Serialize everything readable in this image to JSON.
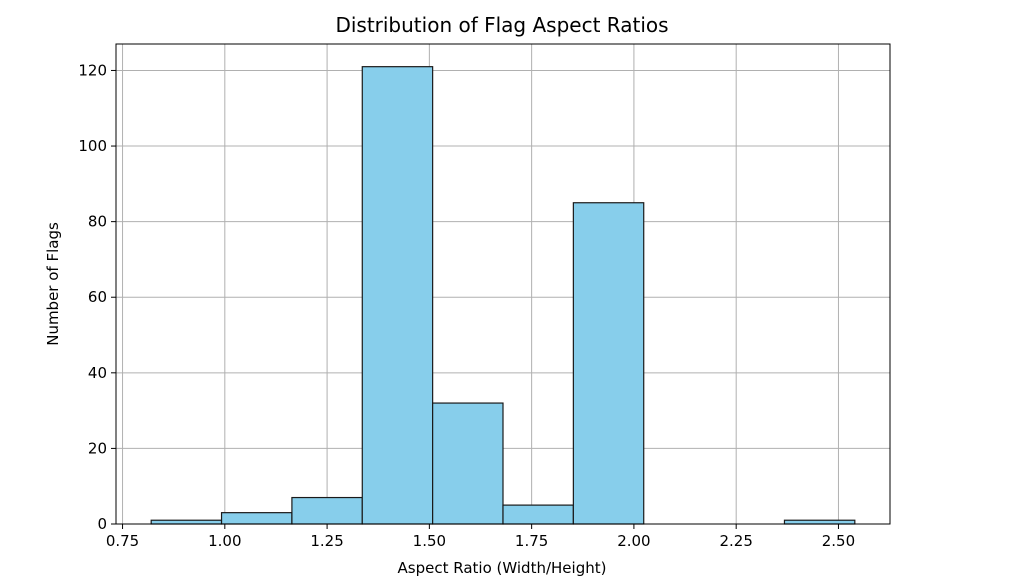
{
  "chart_data": {
    "type": "bar",
    "title": "Distribution of Flag Aspect Ratios",
    "xlabel": "Aspect Ratio (Width/Height)",
    "ylabel": "Number of Flags",
    "bins": [
      {
        "start": 0.82,
        "end": 0.992,
        "count": 1
      },
      {
        "start": 0.992,
        "end": 1.164,
        "count": 3
      },
      {
        "start": 1.164,
        "end": 1.336,
        "count": 7
      },
      {
        "start": 1.336,
        "end": 1.508,
        "count": 121
      },
      {
        "start": 1.508,
        "end": 1.68,
        "count": 32
      },
      {
        "start": 1.68,
        "end": 1.852,
        "count": 5
      },
      {
        "start": 1.852,
        "end": 2.024,
        "count": 85
      },
      {
        "start": 2.024,
        "end": 2.196,
        "count": 0
      },
      {
        "start": 2.196,
        "end": 2.368,
        "count": 0
      },
      {
        "start": 2.368,
        "end": 2.54,
        "count": 1
      }
    ],
    "xlim": [
      0.734,
      2.626
    ],
    "ylim": [
      0,
      127
    ],
    "x_ticks": [
      0.75,
      1.0,
      1.25,
      1.5,
      1.75,
      2.0,
      2.25,
      2.5
    ],
    "x_tick_labels": [
      "0.75",
      "1.00",
      "1.25",
      "1.50",
      "1.75",
      "2.00",
      "2.25",
      "2.50"
    ],
    "y_ticks": [
      0,
      20,
      40,
      60,
      80,
      100,
      120
    ],
    "y_tick_labels": [
      "0",
      "20",
      "40",
      "60",
      "80",
      "100",
      "120"
    ],
    "grid": true,
    "bar_color": "#87ceeb",
    "edge_color": "#1a1a1a"
  }
}
